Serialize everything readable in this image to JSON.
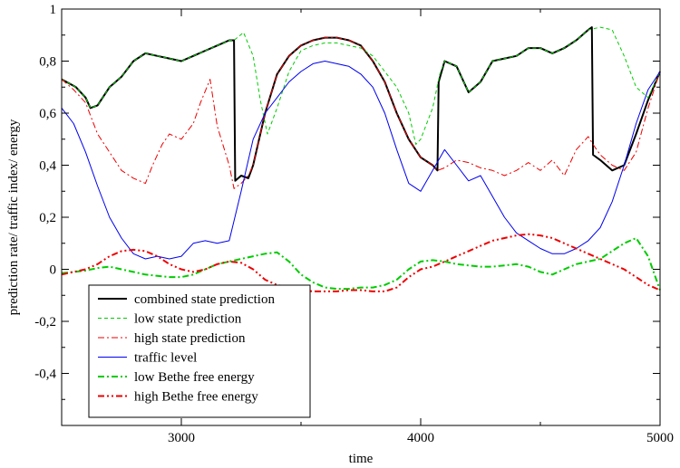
{
  "chart_data": {
    "type": "line",
    "xlabel": "time",
    "ylabel": "prediction rate/ traffic index/ energy",
    "xlim": [
      2500,
      5000
    ],
    "ylim": [
      -0.6,
      1.0
    ],
    "x_ticks": [
      {
        "value": 3000,
        "label": "3000"
      },
      {
        "value": 4000,
        "label": "4000"
      },
      {
        "value": 5000,
        "label": "5000"
      }
    ],
    "y_ticks": [
      {
        "value": -0.4,
        "label": "-0,4"
      },
      {
        "value": -0.2,
        "label": "-0,2"
      },
      {
        "value": 0.0,
        "label": "0"
      },
      {
        "value": 0.2,
        "label": "0,2"
      },
      {
        "value": 0.4,
        "label": "0,4"
      },
      {
        "value": 0.6,
        "label": "0,6"
      },
      {
        "value": 0.8,
        "label": "0,8"
      },
      {
        "value": 1.0,
        "label": "1"
      }
    ],
    "grid": false,
    "legend_position": "bottom-left",
    "series": [
      {
        "name": "combined state prediction",
        "color": "#000000",
        "style": "solid",
        "x": [
          2500,
          2560,
          2600,
          2620,
          2650,
          2700,
          2750,
          2800,
          2850,
          2900,
          2950,
          3000,
          3050,
          3100,
          3150,
          3200,
          3220,
          3225,
          3250,
          3280,
          3300,
          3350,
          3400,
          3450,
          3500,
          3550,
          3600,
          3650,
          3700,
          3750,
          3800,
          3850,
          3900,
          3950,
          4000,
          4050,
          4070,
          4075,
          4100,
          4150,
          4200,
          4250,
          4300,
          4350,
          4400,
          4450,
          4500,
          4550,
          4600,
          4650,
          4700,
          4715,
          4720,
          4750,
          4800,
          4850,
          4900,
          4950,
          5000
        ],
        "y": [
          0.73,
          0.7,
          0.66,
          0.62,
          0.63,
          0.7,
          0.74,
          0.8,
          0.83,
          0.82,
          0.81,
          0.8,
          0.82,
          0.84,
          0.86,
          0.88,
          0.88,
          0.34,
          0.36,
          0.35,
          0.4,
          0.6,
          0.75,
          0.82,
          0.86,
          0.88,
          0.89,
          0.89,
          0.88,
          0.86,
          0.8,
          0.72,
          0.6,
          0.5,
          0.43,
          0.4,
          0.38,
          0.72,
          0.8,
          0.78,
          0.68,
          0.72,
          0.8,
          0.81,
          0.82,
          0.85,
          0.85,
          0.83,
          0.85,
          0.88,
          0.92,
          0.93,
          0.44,
          0.42,
          0.38,
          0.4,
          0.52,
          0.65,
          0.76
        ]
      },
      {
        "name": "low state prediction",
        "color": "#00cc00",
        "style": "dashed",
        "x": [
          2500,
          2560,
          2600,
          2620,
          2650,
          2700,
          2750,
          2800,
          2850,
          2900,
          2950,
          3000,
          3050,
          3100,
          3150,
          3200,
          3220,
          3260,
          3300,
          3330,
          3360,
          3400,
          3450,
          3500,
          3550,
          3600,
          3650,
          3700,
          3750,
          3800,
          3850,
          3900,
          3950,
          3980,
          4000,
          4050,
          4080,
          4100,
          4150,
          4200,
          4250,
          4300,
          4350,
          4400,
          4450,
          4500,
          4550,
          4600,
          4650,
          4700,
          4750,
          4800,
          4850,
          4900,
          4950,
          5000
        ],
        "y": [
          0.73,
          0.7,
          0.66,
          0.62,
          0.63,
          0.7,
          0.74,
          0.8,
          0.83,
          0.82,
          0.81,
          0.8,
          0.82,
          0.84,
          0.86,
          0.88,
          0.88,
          0.91,
          0.82,
          0.65,
          0.52,
          0.62,
          0.76,
          0.84,
          0.86,
          0.87,
          0.87,
          0.86,
          0.85,
          0.82,
          0.76,
          0.7,
          0.6,
          0.48,
          0.5,
          0.62,
          0.75,
          0.8,
          0.78,
          0.68,
          0.72,
          0.8,
          0.81,
          0.82,
          0.85,
          0.85,
          0.83,
          0.85,
          0.88,
          0.92,
          0.93,
          0.92,
          0.82,
          0.7,
          0.66,
          0.76
        ]
      },
      {
        "name": "high state prediction",
        "color": "#ee0000",
        "style": "dashdot",
        "x": [
          2500,
          2550,
          2600,
          2650,
          2700,
          2750,
          2800,
          2850,
          2880,
          2920,
          2950,
          3000,
          3050,
          3080,
          3120,
          3150,
          3200,
          3220,
          3250,
          3280,
          3300,
          3350,
          3400,
          3450,
          3500,
          3550,
          3600,
          3650,
          3700,
          3750,
          3800,
          3850,
          3900,
          3950,
          4000,
          4050,
          4070,
          4100,
          4150,
          4200,
          4250,
          4300,
          4350,
          4400,
          4450,
          4500,
          4550,
          4600,
          4650,
          4700,
          4720,
          4750,
          4800,
          4850,
          4900,
          4950,
          5000
        ],
        "y": [
          0.73,
          0.69,
          0.64,
          0.52,
          0.45,
          0.38,
          0.35,
          0.33,
          0.4,
          0.48,
          0.52,
          0.5,
          0.56,
          0.64,
          0.73,
          0.55,
          0.4,
          0.31,
          0.33,
          0.36,
          0.4,
          0.6,
          0.75,
          0.82,
          0.86,
          0.88,
          0.89,
          0.89,
          0.88,
          0.86,
          0.8,
          0.72,
          0.6,
          0.5,
          0.43,
          0.4,
          0.38,
          0.39,
          0.42,
          0.41,
          0.39,
          0.38,
          0.36,
          0.38,
          0.41,
          0.38,
          0.42,
          0.36,
          0.46,
          0.51,
          0.48,
          0.44,
          0.4,
          0.38,
          0.45,
          0.62,
          0.76
        ]
      },
      {
        "name": "traffic level",
        "color": "#0000ee",
        "style": "solid",
        "x": [
          2500,
          2550,
          2600,
          2650,
          2700,
          2750,
          2800,
          2850,
          2900,
          2950,
          3000,
          3050,
          3100,
          3150,
          3200,
          3250,
          3300,
          3350,
          3400,
          3450,
          3500,
          3550,
          3600,
          3650,
          3700,
          3750,
          3800,
          3850,
          3900,
          3950,
          4000,
          4050,
          4100,
          4150,
          4200,
          4250,
          4300,
          4350,
          4400,
          4450,
          4500,
          4550,
          4600,
          4650,
          4700,
          4750,
          4800,
          4850,
          4900,
          4950,
          5000
        ],
        "y": [
          0.62,
          0.56,
          0.45,
          0.32,
          0.2,
          0.12,
          0.06,
          0.04,
          0.05,
          0.04,
          0.05,
          0.1,
          0.11,
          0.1,
          0.11,
          0.3,
          0.5,
          0.6,
          0.66,
          0.72,
          0.76,
          0.79,
          0.8,
          0.79,
          0.78,
          0.75,
          0.7,
          0.6,
          0.46,
          0.33,
          0.3,
          0.38,
          0.46,
          0.4,
          0.34,
          0.36,
          0.28,
          0.2,
          0.14,
          0.11,
          0.08,
          0.06,
          0.06,
          0.08,
          0.11,
          0.16,
          0.26,
          0.4,
          0.56,
          0.69,
          0.76
        ]
      },
      {
        "name": "low Bethe free energy",
        "color": "#00cc00",
        "style": "dashdot",
        "x": [
          2500,
          2550,
          2600,
          2650,
          2700,
          2750,
          2800,
          2850,
          2900,
          2950,
          3000,
          3050,
          3100,
          3150,
          3200,
          3250,
          3300,
          3350,
          3400,
          3450,
          3500,
          3550,
          3600,
          3650,
          3700,
          3750,
          3800,
          3850,
          3900,
          3950,
          4000,
          4050,
          4100,
          4150,
          4200,
          4250,
          4300,
          4350,
          4400,
          4450,
          4500,
          4550,
          4600,
          4650,
          4700,
          4750,
          4800,
          4850,
          4900,
          4950,
          5000
        ],
        "y": [
          -0.015,
          -0.01,
          -0.005,
          0.005,
          0.01,
          0.0,
          -0.01,
          -0.02,
          -0.025,
          -0.03,
          -0.03,
          -0.02,
          0.0,
          0.02,
          0.03,
          0.04,
          0.05,
          0.06,
          0.065,
          0.03,
          -0.02,
          -0.05,
          -0.07,
          -0.075,
          -0.075,
          -0.07,
          -0.07,
          -0.06,
          -0.04,
          0.0,
          0.03,
          0.035,
          0.03,
          0.02,
          0.015,
          0.01,
          0.01,
          0.015,
          0.02,
          0.01,
          -0.01,
          -0.02,
          0.0,
          0.02,
          0.03,
          0.04,
          0.07,
          0.1,
          0.12,
          0.05,
          -0.08
        ]
      },
      {
        "name": "high Bethe free energy",
        "color": "#ee0000",
        "style": "dashdot2",
        "x": [
          2500,
          2550,
          2600,
          2650,
          2700,
          2750,
          2800,
          2850,
          2900,
          2950,
          3000,
          3050,
          3100,
          3150,
          3200,
          3250,
          3300,
          3350,
          3400,
          3450,
          3500,
          3550,
          3600,
          3650,
          3700,
          3750,
          3800,
          3850,
          3900,
          3950,
          4000,
          4050,
          4100,
          4150,
          4200,
          4250,
          4300,
          4350,
          4400,
          4450,
          4500,
          4550,
          4600,
          4650,
          4700,
          4750,
          4800,
          4850,
          4900,
          4950,
          5000
        ],
        "y": [
          -0.02,
          -0.01,
          0.0,
          0.02,
          0.05,
          0.07,
          0.075,
          0.07,
          0.05,
          0.02,
          0.0,
          -0.01,
          0.0,
          0.02,
          0.03,
          0.025,
          0.0,
          -0.04,
          -0.06,
          -0.07,
          -0.08,
          -0.085,
          -0.085,
          -0.085,
          -0.08,
          -0.08,
          -0.085,
          -0.085,
          -0.07,
          -0.03,
          0.0,
          0.01,
          0.03,
          0.05,
          0.07,
          0.09,
          0.11,
          0.12,
          0.13,
          0.135,
          0.13,
          0.12,
          0.1,
          0.08,
          0.06,
          0.04,
          0.02,
          0.0,
          -0.03,
          -0.06,
          -0.08
        ]
      }
    ]
  }
}
